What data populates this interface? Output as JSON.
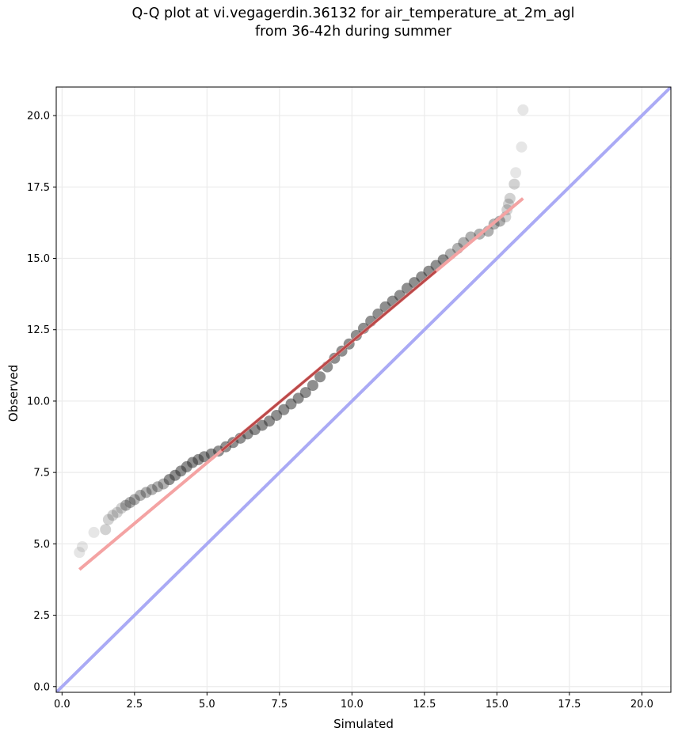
{
  "chart_data": {
    "type": "scatter",
    "title_line1": "Q-Q plot at vi.vegagerdin.36132 for air_temperature_at_2m_agl",
    "title_line2": "from 36-42h during summer",
    "xlabel": "Simulated",
    "ylabel": "Observed",
    "xlim": [
      -0.2,
      21.0
    ],
    "ylim": [
      -0.2,
      21.0
    ],
    "xticks": [
      "0.0",
      "2.5",
      "5.0",
      "7.5",
      "10.0",
      "12.5",
      "15.0",
      "17.5",
      "20.0"
    ],
    "yticks": [
      "0.0",
      "2.5",
      "5.0",
      "7.5",
      "10.0",
      "12.5",
      "15.0",
      "17.5",
      "20.0"
    ],
    "grid": true,
    "quantile_pairs": [
      [
        0.6,
        4.7
      ],
      [
        0.7,
        4.9
      ],
      [
        1.1,
        5.4
      ],
      [
        1.5,
        5.5
      ],
      [
        1.6,
        5.85
      ],
      [
        1.75,
        6.0
      ],
      [
        1.9,
        6.1
      ],
      [
        2.05,
        6.25
      ],
      [
        2.2,
        6.35
      ],
      [
        2.35,
        6.45
      ],
      [
        2.5,
        6.55
      ],
      [
        2.7,
        6.7
      ],
      [
        2.9,
        6.8
      ],
      [
        3.1,
        6.9
      ],
      [
        3.3,
        7.0
      ],
      [
        3.5,
        7.1
      ],
      [
        3.7,
        7.25
      ],
      [
        3.9,
        7.4
      ],
      [
        4.1,
        7.55
      ],
      [
        4.3,
        7.7
      ],
      [
        4.5,
        7.85
      ],
      [
        4.7,
        7.95
      ],
      [
        4.9,
        8.05
      ],
      [
        5.15,
        8.15
      ],
      [
        5.4,
        8.25
      ],
      [
        5.65,
        8.4
      ],
      [
        5.9,
        8.55
      ],
      [
        6.15,
        8.7
      ],
      [
        6.4,
        8.85
      ],
      [
        6.65,
        9.0
      ],
      [
        6.9,
        9.15
      ],
      [
        7.15,
        9.3
      ],
      [
        7.4,
        9.5
      ],
      [
        7.65,
        9.7
      ],
      [
        7.9,
        9.9
      ],
      [
        8.15,
        10.1
      ],
      [
        8.4,
        10.3
      ],
      [
        8.65,
        10.55
      ],
      [
        8.9,
        10.85
      ],
      [
        9.15,
        11.2
      ],
      [
        9.4,
        11.5
      ],
      [
        9.65,
        11.75
      ],
      [
        9.9,
        12.0
      ],
      [
        10.15,
        12.3
      ],
      [
        10.4,
        12.55
      ],
      [
        10.65,
        12.8
      ],
      [
        10.9,
        13.05
      ],
      [
        11.15,
        13.3
      ],
      [
        11.4,
        13.5
      ],
      [
        11.65,
        13.7
      ],
      [
        11.9,
        13.95
      ],
      [
        12.15,
        14.15
      ],
      [
        12.4,
        14.35
      ],
      [
        12.65,
        14.55
      ],
      [
        12.9,
        14.75
      ],
      [
        13.15,
        14.95
      ],
      [
        13.4,
        15.15
      ],
      [
        13.65,
        15.35
      ],
      [
        13.85,
        15.55
      ],
      [
        14.1,
        15.75
      ],
      [
        14.4,
        15.85
      ],
      [
        14.7,
        15.95
      ],
      [
        14.9,
        16.2
      ],
      [
        15.1,
        16.3
      ],
      [
        15.3,
        16.45
      ],
      [
        15.35,
        16.7
      ],
      [
        15.4,
        16.9
      ],
      [
        15.45,
        17.1
      ],
      [
        15.6,
        17.6
      ],
      [
        15.65,
        18.0
      ],
      [
        15.85,
        18.9
      ],
      [
        15.9,
        20.2
      ]
    ],
    "fit_line": {
      "x": [
        0.6,
        15.9
      ],
      "y": [
        4.1,
        17.1
      ]
    },
    "identity_line": {
      "x": [
        -0.2,
        21.0
      ],
      "y": [
        -0.2,
        21.0
      ]
    },
    "colors": {
      "points": "#333333",
      "fit_light": "#f4a3a3",
      "fit_dark": "#8b0000",
      "identity": "#aaaaf5",
      "grid": "#ebebeb"
    }
  }
}
